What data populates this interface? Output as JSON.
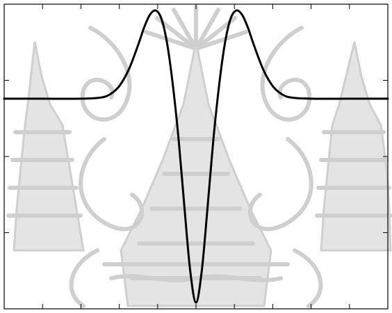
{
  "chart_data": {
    "type": "line",
    "title": "",
    "xlabel": "",
    "ylabel": "",
    "grid": false,
    "legend": "none",
    "xlim": [
      -5,
      5
    ],
    "ylim": [
      -1.0,
      0.45
    ],
    "x_ticks_count": 9,
    "y_ticks_count": 3,
    "series": [
      {
        "color": "#000000",
        "x": [
          -5.0,
          -4.0,
          -3.0,
          -2.5,
          -2.25,
          -2.0,
          -1.75,
          -1.5,
          -1.35,
          -1.2,
          -1.05,
          -0.9,
          -0.75,
          -0.6,
          -0.45,
          -0.3,
          -0.15,
          0.0,
          0.15,
          0.3,
          0.45,
          0.6,
          0.75,
          0.9,
          1.05,
          1.2,
          1.35,
          1.5,
          1.75,
          2.0,
          2.25,
          2.5,
          3.0,
          4.0,
          5.0
        ],
        "y": [
          0.0,
          0.0,
          0.0,
          0.005,
          0.02,
          0.06,
          0.14,
          0.26,
          0.34,
          0.4,
          0.42,
          0.38,
          0.26,
          0.06,
          -0.2,
          -0.52,
          -0.82,
          -0.97,
          -0.82,
          -0.52,
          -0.2,
          0.06,
          0.26,
          0.38,
          0.42,
          0.4,
          0.34,
          0.26,
          0.14,
          0.06,
          0.02,
          0.005,
          0.0,
          0.0,
          0.0
        ]
      }
    ]
  },
  "watermark": {
    "kind": "seal",
    "color": "#cfcfcf"
  }
}
